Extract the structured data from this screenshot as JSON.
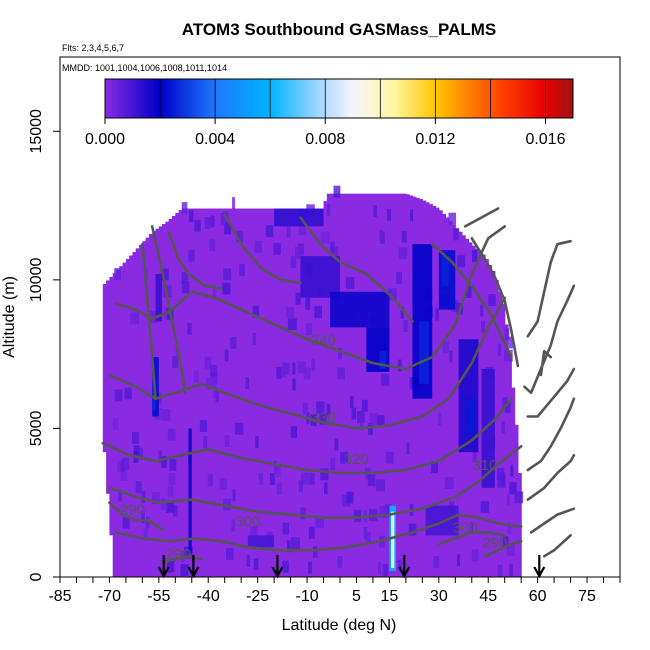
{
  "chart_data": {
    "type": "heatmap",
    "title": "ATOM3 Southbound GASMass_PALMS",
    "flights_label": "Flts: 2,3,4,5,6,7",
    "dates_label": "MMDD: 1001,1004,1006,1008,1011,1014",
    "xlabel": "Latitude (deg N)",
    "ylabel": "Altitude (m)",
    "xlim": [
      -85,
      85
    ],
    "ylim": [
      0,
      17500
    ],
    "x_ticks": [
      -85,
      -70,
      -55,
      -40,
      -25,
      -10,
      5,
      15,
      30,
      45,
      60,
      75
    ],
    "x_tick_labels": [
      "-85",
      "-70",
      "-55",
      "-40",
      "-25",
      "-10",
      "5",
      "15",
      "30",
      "45",
      "60",
      "75"
    ],
    "x_minor_step": 5,
    "y_ticks": [
      0,
      5000,
      10000,
      15000
    ],
    "y_tick_labels": [
      "0",
      "5000",
      "10000",
      "15000"
    ],
    "colorbar": {
      "range": [
        0,
        0.017
      ],
      "ticks": [
        0,
        0.004,
        0.008,
        0.012,
        0.016
      ],
      "tick_labels": [
        "0.000",
        "0.004",
        "0.008",
        "0.012",
        "0.016"
      ],
      "stops": [
        {
          "v": 0.0,
          "color": "#8a2be2"
        },
        {
          "v": 0.002,
          "color": "#0000c8"
        },
        {
          "v": 0.004,
          "color": "#1e78ff"
        },
        {
          "v": 0.006,
          "color": "#00b4ff"
        },
        {
          "v": 0.008,
          "color": "#b4dcff"
        },
        {
          "v": 0.009,
          "color": "#f5f5ff"
        },
        {
          "v": 0.0105,
          "color": "#fff5a0"
        },
        {
          "v": 0.012,
          "color": "#ffc800"
        },
        {
          "v": 0.013,
          "color": "#ff8c00"
        },
        {
          "v": 0.0145,
          "color": "#ff3c00"
        },
        {
          "v": 0.016,
          "color": "#e60000"
        },
        {
          "v": 0.017,
          "color": "#a01414"
        }
      ]
    },
    "coverage": {
      "columns": [
        {
          "lat": -72,
          "top": 9800
        },
        {
          "lat": -67,
          "top": 10400
        },
        {
          "lat": -62,
          "top": 11000
        },
        {
          "lat": -57,
          "top": 11600
        },
        {
          "lat": -52,
          "top": 12000
        },
        {
          "lat": -48,
          "top": 12400
        },
        {
          "lat": -40,
          "top": 12400
        },
        {
          "lat": -30,
          "top": 12400
        },
        {
          "lat": -20,
          "top": 12400
        },
        {
          "lat": -10,
          "top": 12400
        },
        {
          "lat": -5,
          "top": 12400
        },
        {
          "lat": -4,
          "top": 12900
        },
        {
          "lat": 10,
          "top": 12900
        },
        {
          "lat": 20,
          "top": 12900
        },
        {
          "lat": 25,
          "top": 12700
        },
        {
          "lat": 30,
          "top": 12400
        },
        {
          "lat": 35,
          "top": 11800
        },
        {
          "lat": 40,
          "top": 11200
        },
        {
          "lat": 44,
          "top": 10800
        },
        {
          "lat": 47,
          "top": 10200
        },
        {
          "lat": 50,
          "top": 9000
        },
        {
          "lat": 52,
          "top": 7000
        },
        {
          "lat": 54,
          "top": 4500
        },
        {
          "lat": 55,
          "top": 2500
        }
      ],
      "bottom_left_lat": -69,
      "bottom_right_lat": 55
    },
    "enhancements": [
      {
        "lat0": -20,
        "lat1": -5,
        "alt0": 11800,
        "alt1": 12400,
        "v": 0.0013
      },
      {
        "lat0": -12,
        "lat1": 0,
        "alt0": 9400,
        "alt1": 10800,
        "v": 0.0012
      },
      {
        "lat0": -3,
        "lat1": 15,
        "alt0": 8400,
        "alt1": 9600,
        "v": 0.0018
      },
      {
        "lat0": 8,
        "lat1": 15,
        "alt0": 6900,
        "alt1": 8400,
        "v": 0.002
      },
      {
        "lat0": 12,
        "lat1": 14,
        "alt0": 7000,
        "alt1": 7600,
        "v": 0.0026
      },
      {
        "lat0": 22,
        "lat1": 28,
        "alt0": 6000,
        "alt1": 11200,
        "v": 0.002
      },
      {
        "lat0": 24,
        "lat1": 27,
        "alt0": 6500,
        "alt1": 8600,
        "v": 0.0026
      },
      {
        "lat0": 30,
        "lat1": 35,
        "alt0": 9000,
        "alt1": 11000,
        "v": 0.0022
      },
      {
        "lat0": 31,
        "lat1": 33,
        "alt0": 9800,
        "alt1": 10800,
        "v": 0.0026
      },
      {
        "lat0": 36,
        "lat1": 42,
        "alt0": 4200,
        "alt1": 8000,
        "v": 0.0016
      },
      {
        "lat0": 38,
        "lat1": 41,
        "alt0": 4800,
        "alt1": 6000,
        "v": 0.0024
      },
      {
        "lat0": 43,
        "lat1": 47,
        "alt0": 3000,
        "alt1": 7000,
        "v": 0.0012
      },
      {
        "lat0": 26,
        "lat1": 36,
        "alt0": 1400,
        "alt1": 2400,
        "v": 0.001
      },
      {
        "lat0": -57,
        "lat1": -55,
        "alt0": 5400,
        "alt1": 7400,
        "v": 0.0022
      },
      {
        "lat0": -57,
        "lat1": -56,
        "alt0": 5600,
        "alt1": 6600,
        "v": 0.0027
      },
      {
        "lat0": -56,
        "lat1": -54,
        "alt0": 8600,
        "alt1": 10200,
        "v": 0.0012
      },
      {
        "lat0": -46,
        "lat1": -45,
        "alt0": 800,
        "alt1": 5000,
        "v": 0.0018
      },
      {
        "lat0": -28,
        "lat1": -20,
        "alt0": 1000,
        "alt1": 1400,
        "v": 0.001
      },
      {
        "lat0": 15,
        "lat1": 17,
        "alt0": 200,
        "alt1": 2400,
        "v": 0.006
      },
      {
        "lat0": 15.5,
        "lat1": 16.5,
        "alt0": 300,
        "alt1": 2200,
        "v": 0.009
      }
    ],
    "theta_contours": [
      {
        "label": "340",
        "label_at": [
          -5,
          7800
        ],
        "points": [
          [
            -68,
            9200
          ],
          [
            -62,
            9000
          ],
          [
            -57,
            8700
          ],
          [
            -52,
            8900
          ],
          [
            -45,
            9600
          ],
          [
            -38,
            9400
          ],
          [
            -30,
            9000
          ],
          [
            -20,
            8500
          ],
          [
            -10,
            8000
          ],
          [
            0,
            7600
          ],
          [
            10,
            7200
          ],
          [
            20,
            7000
          ],
          [
            28,
            7400
          ],
          [
            35,
            8500
          ],
          [
            40,
            10200
          ],
          [
            45,
            11400
          ],
          [
            50,
            11800
          ]
        ]
      },
      {
        "label": "330",
        "label_at": [
          -5,
          5200
        ],
        "points": [
          [
            -70,
            6800
          ],
          [
            -62,
            6400
          ],
          [
            -56,
            6000
          ],
          [
            -50,
            6200
          ],
          [
            -42,
            6500
          ],
          [
            -35,
            6200
          ],
          [
            -25,
            5800
          ],
          [
            -15,
            5500
          ],
          [
            -5,
            5200
          ],
          [
            5,
            5000
          ],
          [
            15,
            5100
          ],
          [
            25,
            5400
          ],
          [
            33,
            6000
          ],
          [
            40,
            7200
          ],
          [
            45,
            8400
          ],
          [
            50,
            9400
          ]
        ]
      },
      {
        "label": "320",
        "label_at": [
          5,
          3800
        ],
        "points": [
          [
            -72,
            4500
          ],
          [
            -64,
            4100
          ],
          [
            -56,
            3900
          ],
          [
            -48,
            4100
          ],
          [
            -40,
            4300
          ],
          [
            -30,
            4000
          ],
          [
            -20,
            3800
          ],
          [
            -10,
            3600
          ],
          [
            0,
            3500
          ],
          [
            10,
            3500
          ],
          [
            20,
            3600
          ],
          [
            30,
            3900
          ],
          [
            40,
            4600
          ],
          [
            47,
            5300
          ],
          [
            52,
            6000
          ]
        ]
      },
      {
        "label": "310",
        "label_at": [
          44,
          3600
        ],
        "points": [
          [
            -70,
            3000
          ],
          [
            -62,
            2700
          ],
          [
            -55,
            2500
          ],
          [
            -45,
            2600
          ],
          [
            -35,
            2400
          ],
          [
            -25,
            2200
          ],
          [
            -15,
            2100
          ],
          [
            -5,
            2000
          ],
          [
            5,
            2000
          ],
          [
            15,
            2100
          ],
          [
            25,
            2300
          ],
          [
            35,
            2700
          ],
          [
            42,
            3200
          ],
          [
            48,
            3800
          ],
          [
            55,
            4400
          ]
        ]
      },
      {
        "label": "300",
        "label_at": [
          -28,
          1700
        ],
        "points": [
          [
            -68,
            1500
          ],
          [
            -60,
            1300
          ],
          [
            -52,
            1200
          ],
          [
            -44,
            1300
          ],
          [
            -36,
            1200
          ],
          [
            -28,
            1000
          ],
          [
            -18,
            900
          ],
          [
            -8,
            900
          ],
          [
            2,
            1000
          ],
          [
            12,
            1200
          ],
          [
            22,
            1500
          ],
          [
            30,
            1800
          ],
          [
            36,
            2100
          ],
          [
            42,
            2000
          ],
          [
            48,
            1800
          ],
          [
            55,
            1700
          ]
        ]
      },
      {
        "label": "300",
        "label_at": [
          38,
          1500
        ],
        "points": [
          [
            30,
            1100
          ],
          [
            35,
            1300
          ],
          [
            40,
            1500
          ],
          [
            45,
            1500
          ],
          [
            50,
            1400
          ]
        ]
      },
      {
        "label": "290",
        "label_at": [
          -63,
          2100
        ],
        "points": [
          [
            -70,
            2500
          ],
          [
            -66,
            2100
          ],
          [
            -62,
            1900
          ],
          [
            -58,
            1900
          ],
          [
            -54,
            1600
          ]
        ]
      },
      {
        "label": "290",
        "label_at": [
          -49,
          600
        ],
        "points": [
          [
            -54,
            500
          ],
          [
            -50,
            600
          ],
          [
            -46,
            700
          ],
          [
            -42,
            600
          ]
        ]
      },
      {
        "label": "290",
        "label_at": [
          47,
          1000
        ],
        "points": [
          [
            44,
            700
          ],
          [
            48,
            900
          ],
          [
            52,
            1100
          ],
          [
            55,
            1200
          ]
        ]
      }
    ],
    "outer_contours": [
      [
        [
          -57,
          11800
        ],
        [
          -55,
          10800
        ],
        [
          -53,
          9800
        ],
        [
          -51,
          8600
        ],
        [
          -49,
          7600
        ],
        [
          -47,
          6200
        ]
      ],
      [
        [
          -60,
          11200
        ],
        [
          -59,
          10000
        ],
        [
          -58,
          8800
        ],
        [
          -57,
          7400
        ],
        [
          -56,
          6000
        ]
      ],
      [
        [
          -52,
          11600
        ],
        [
          -49,
          10700
        ],
        [
          -46,
          10200
        ],
        [
          -41,
          9800
        ],
        [
          -36,
          9700
        ]
      ],
      [
        [
          -35,
          12200
        ],
        [
          -30,
          11200
        ],
        [
          -24,
          10400
        ],
        [
          -18,
          10000
        ],
        [
          -12,
          9900
        ]
      ],
      [
        [
          -12,
          12100
        ],
        [
          -6,
          11200
        ],
        [
          0,
          10600
        ],
        [
          8,
          10200
        ],
        [
          16,
          9400
        ],
        [
          22,
          8600
        ]
      ],
      [
        [
          28,
          11200
        ],
        [
          34,
          10600
        ],
        [
          40,
          9800
        ],
        [
          46,
          8800
        ],
        [
          52,
          7400
        ]
      ],
      [
        [
          40,
          11400
        ],
        [
          44,
          10700
        ],
        [
          47,
          10100
        ],
        [
          50,
          9300
        ],
        [
          52,
          8300
        ],
        [
          54,
          7100
        ]
      ],
      [
        [
          38,
          11800
        ],
        [
          48,
          12400
        ]
      ],
      [
        [
          57,
          8100
        ],
        [
          60,
          8600
        ],
        [
          62,
          9600
        ],
        [
          64,
          10600
        ],
        [
          66,
          11200
        ],
        [
          70,
          11300
        ]
      ],
      [
        [
          56,
          6400
        ],
        [
          58,
          6200
        ],
        [
          61,
          7000
        ],
        [
          64,
          7800
        ],
        [
          66,
          8600
        ],
        [
          69,
          9300
        ],
        [
          71,
          9800
        ]
      ],
      [
        [
          61,
          6800
        ],
        [
          62,
          7600
        ],
        [
          64,
          7400
        ]
      ],
      [
        [
          57,
          5400
        ],
        [
          60,
          5400
        ],
        [
          63,
          5800
        ],
        [
          66,
          6200
        ],
        [
          69,
          6600
        ],
        [
          71,
          7000
        ]
      ],
      [
        [
          57,
          3600
        ],
        [
          61,
          3900
        ],
        [
          64,
          4400
        ],
        [
          67,
          5000
        ],
        [
          70,
          5700
        ],
        [
          71,
          6000
        ]
      ],
      [
        [
          57,
          2600
        ],
        [
          62,
          3000
        ],
        [
          66,
          3500
        ],
        [
          70,
          3900
        ],
        [
          71,
          4100
        ]
      ],
      [
        [
          58,
          1500
        ],
        [
          62,
          1800
        ],
        [
          66,
          2100
        ],
        [
          71,
          2300
        ]
      ],
      [
        [
          62,
          700
        ],
        [
          65,
          900
        ],
        [
          68,
          1200
        ],
        [
          70,
          1400
        ]
      ]
    ],
    "arrow_lats": [
      -53.5,
      -44.5,
      -19,
      19.5,
      60.5
    ]
  }
}
